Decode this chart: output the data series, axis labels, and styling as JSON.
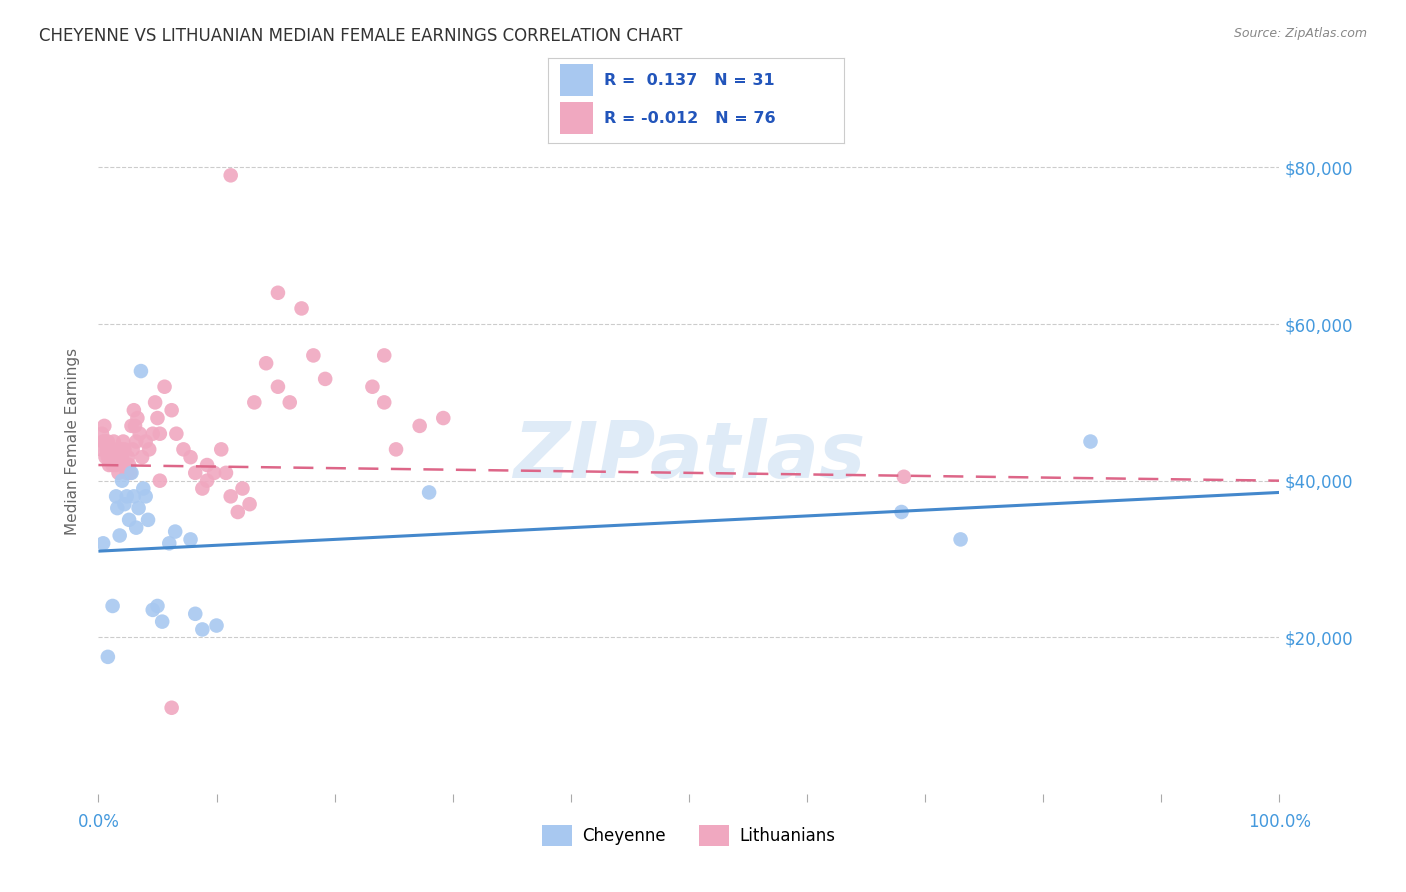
{
  "title": "CHEYENNE VS LITHUANIAN MEDIAN FEMALE EARNINGS CORRELATION CHART",
  "source": "Source: ZipAtlas.com",
  "ylabel": "Median Female Earnings",
  "yticks": [
    20000,
    40000,
    60000,
    80000
  ],
  "ytick_labels": [
    "$20,000",
    "$40,000",
    "$60,000",
    "$80,000"
  ],
  "watermark": "ZIPatlas",
  "cheyenne_color": "#a8c8f0",
  "lithuanian_color": "#f0a8c0",
  "cheyenne_line_color": "#4488cc",
  "lithuanian_line_color": "#dd6688",
  "label_color": "#4499dd",
  "grid_color": "#cccccc",
  "cheyenne_scatter": [
    [
      0.004,
      32000
    ],
    [
      0.008,
      17500
    ],
    [
      0.012,
      24000
    ],
    [
      0.015,
      38000
    ],
    [
      0.016,
      36500
    ],
    [
      0.018,
      33000
    ],
    [
      0.02,
      40000
    ],
    [
      0.022,
      37000
    ],
    [
      0.024,
      38000
    ],
    [
      0.026,
      35000
    ],
    [
      0.028,
      41000
    ],
    [
      0.03,
      38000
    ],
    [
      0.032,
      34000
    ],
    [
      0.034,
      36500
    ],
    [
      0.036,
      54000
    ],
    [
      0.038,
      39000
    ],
    [
      0.04,
      38000
    ],
    [
      0.042,
      35000
    ],
    [
      0.046,
      23500
    ],
    [
      0.05,
      24000
    ],
    [
      0.054,
      22000
    ],
    [
      0.06,
      32000
    ],
    [
      0.065,
      33500
    ],
    [
      0.078,
      32500
    ],
    [
      0.082,
      23000
    ],
    [
      0.088,
      21000
    ],
    [
      0.1,
      21500
    ],
    [
      0.28,
      38500
    ],
    [
      0.68,
      36000
    ],
    [
      0.73,
      32500
    ],
    [
      0.84,
      45000
    ]
  ],
  "lithuanian_scatter": [
    [
      0.002,
      44000
    ],
    [
      0.003,
      46000
    ],
    [
      0.004,
      45000
    ],
    [
      0.005,
      47000
    ],
    [
      0.006,
      45000
    ],
    [
      0.006,
      43000
    ],
    [
      0.007,
      44000
    ],
    [
      0.008,
      43000
    ],
    [
      0.008,
      45000
    ],
    [
      0.009,
      42000
    ],
    [
      0.01,
      44000
    ],
    [
      0.011,
      43000
    ],
    [
      0.012,
      42000
    ],
    [
      0.013,
      45000
    ],
    [
      0.014,
      43000
    ],
    [
      0.015,
      42000
    ],
    [
      0.016,
      44000
    ],
    [
      0.017,
      41000
    ],
    [
      0.018,
      43000
    ],
    [
      0.019,
      44000
    ],
    [
      0.02,
      43000
    ],
    [
      0.021,
      45000
    ],
    [
      0.022,
      44000
    ],
    [
      0.023,
      42000
    ],
    [
      0.024,
      41000
    ],
    [
      0.025,
      43000
    ],
    [
      0.026,
      42000
    ],
    [
      0.027,
      41000
    ],
    [
      0.028,
      47000
    ],
    [
      0.029,
      44000
    ],
    [
      0.03,
      49000
    ],
    [
      0.031,
      47000
    ],
    [
      0.032,
      45000
    ],
    [
      0.033,
      48000
    ],
    [
      0.035,
      46000
    ],
    [
      0.037,
      43000
    ],
    [
      0.04,
      45000
    ],
    [
      0.043,
      44000
    ],
    [
      0.046,
      46000
    ],
    [
      0.048,
      50000
    ],
    [
      0.05,
      48000
    ],
    [
      0.052,
      46000
    ],
    [
      0.056,
      52000
    ],
    [
      0.062,
      49000
    ],
    [
      0.066,
      46000
    ],
    [
      0.072,
      44000
    ],
    [
      0.078,
      43000
    ],
    [
      0.082,
      41000
    ],
    [
      0.088,
      39000
    ],
    [
      0.092,
      42000
    ],
    [
      0.098,
      41000
    ],
    [
      0.104,
      44000
    ],
    [
      0.108,
      41000
    ],
    [
      0.112,
      38000
    ],
    [
      0.118,
      36000
    ],
    [
      0.122,
      39000
    ],
    [
      0.128,
      37000
    ],
    [
      0.132,
      50000
    ],
    [
      0.142,
      55000
    ],
    [
      0.152,
      52000
    ],
    [
      0.162,
      50000
    ],
    [
      0.172,
      62000
    ],
    [
      0.182,
      56000
    ],
    [
      0.192,
      53000
    ],
    [
      0.232,
      52000
    ],
    [
      0.242,
      56000
    ],
    [
      0.272,
      47000
    ],
    [
      0.112,
      79000
    ],
    [
      0.152,
      64000
    ],
    [
      0.242,
      50000
    ],
    [
      0.252,
      44000
    ],
    [
      0.292,
      48000
    ],
    [
      0.062,
      11000
    ],
    [
      0.682,
      40500
    ],
    [
      0.052,
      40000
    ],
    [
      0.092,
      40000
    ]
  ],
  "ylim": [
    0,
    90000
  ],
  "xlim": [
    0.0,
    1.0
  ],
  "cheyenne_line": [
    0.0,
    31000,
    1.0,
    38500
  ],
  "lithuanian_line": [
    0.0,
    42000,
    1.0,
    40000
  ],
  "background_color": "#ffffff"
}
